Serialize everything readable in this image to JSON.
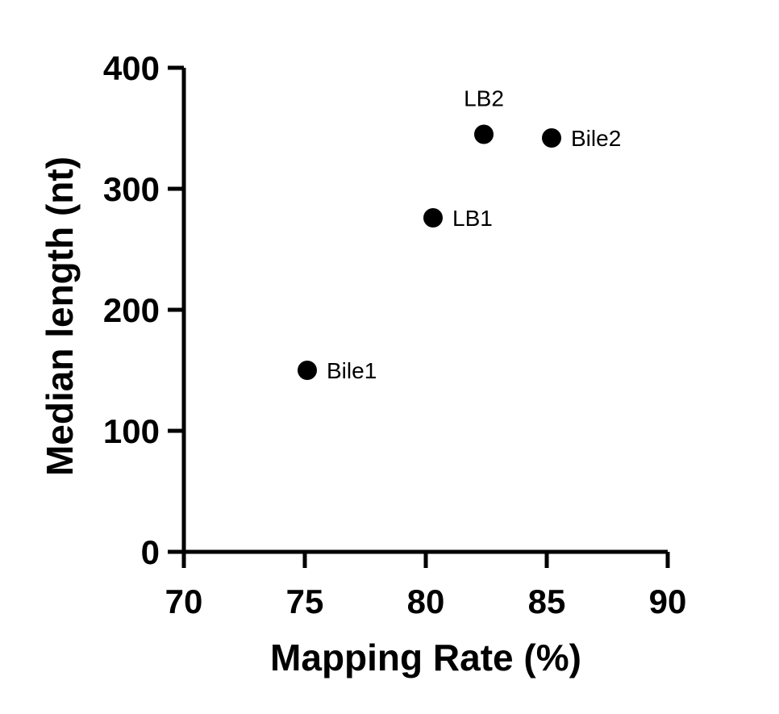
{
  "chart_data": {
    "type": "scatter",
    "title": "",
    "xlabel": "Mapping Rate (%)",
    "ylabel": "Median length (nt)",
    "xlim": [
      70,
      90
    ],
    "ylim": [
      0,
      400
    ],
    "xticks": [
      70,
      75,
      80,
      85,
      90
    ],
    "yticks": [
      0,
      100,
      200,
      300,
      400
    ],
    "grid": false,
    "points": [
      {
        "label": "Bile1",
        "x": 75.1,
        "y": 150,
        "label_position": "right"
      },
      {
        "label": "LB1",
        "x": 80.3,
        "y": 276,
        "label_position": "right"
      },
      {
        "label": "LB2",
        "x": 82.4,
        "y": 345,
        "label_position": "above"
      },
      {
        "label": "Bile2",
        "x": 85.2,
        "y": 342,
        "label_position": "right"
      }
    ]
  }
}
